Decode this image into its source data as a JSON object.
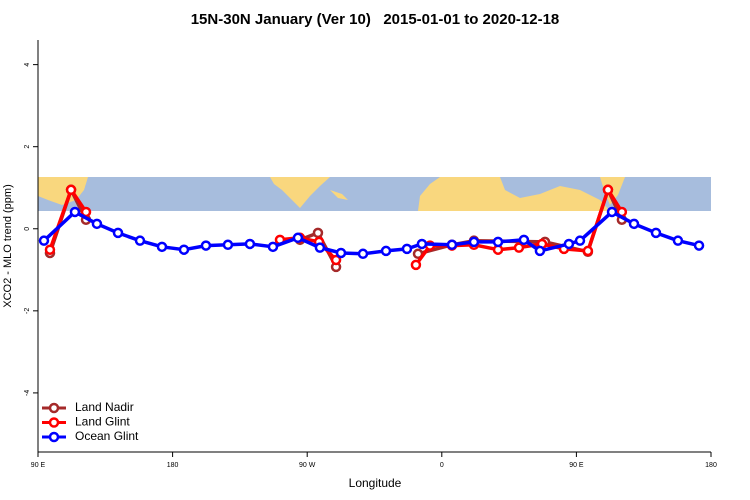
{
  "chart_data": {
    "type": "line",
    "title": "15N-30N January (Ver 10)   2015-01-01 to 2020-12-18",
    "x_label": "Longitude",
    "y_label": "XCO2 - MLO trend (ppm)",
    "xlim": [
      90,
      540
    ],
    "xticks": [
      {
        "value": 90,
        "label": "90 E"
      },
      180,
      {
        "value": 270,
        "label": "90 W"
      },
      {
        "value": 360,
        "label": "0"
      },
      {
        "value": 450,
        "label": "90 E"
      },
      {
        "value": 540,
        "label": "180"
      }
    ],
    "ylim": [
      -5.44,
      4.6
    ],
    "yticks": [
      -4,
      -2,
      0,
      2,
      4
    ],
    "legend": "bottom-left",
    "series": [
      {
        "name": "Land Nadir",
        "color": "#a52a2a",
        "x": [
          98.0,
          112.1,
          122.1,
          null,
          265.2,
          277.2,
          289.3,
          null,
          344.1,
          366.8,
          381.5,
          429.0,
          457.7,
          471.1,
          480.4
        ],
        "values": [
          -0.59,
          0.95,
          0.22,
          null,
          -0.27,
          -0.1,
          -0.93,
          null,
          -0.61,
          -0.39,
          -0.29,
          -0.32,
          -0.56,
          0.95,
          0.22
        ]
      },
      {
        "name": "Land Glint",
        "color": "#ff0000",
        "x": [
          98.0,
          112.1,
          122.1,
          null,
          251.8,
          265.2,
          277.9,
          289.3,
          null,
          342.7,
          352.1,
          366.8,
          381.5,
          397.6,
          411.6,
          427.0,
          441.7,
          457.7,
          471.1,
          480.4
        ],
        "values": [
          -0.51,
          0.95,
          0.41,
          null,
          -0.27,
          -0.22,
          -0.32,
          -0.76,
          null,
          -0.88,
          -0.41,
          -0.41,
          -0.39,
          -0.51,
          -0.46,
          -0.37,
          -0.49,
          -0.54,
          0.95,
          0.41
        ]
      },
      {
        "name": "Ocean Glint",
        "color": "#0000ff",
        "x": [
          94.0,
          114.7,
          129.4,
          143.5,
          158.2,
          172.9,
          187.6,
          202.3,
          217.0,
          231.7,
          247.1,
          263.8,
          278.5,
          292.6,
          307.3,
          322.7,
          336.7,
          346.7,
          366.8,
          381.5,
          397.6,
          414.9,
          425.6,
          445.0,
          452.4,
          473.8,
          488.5,
          503.2,
          517.9,
          532.0
        ],
        "values": [
          -0.29,
          0.41,
          0.12,
          -0.1,
          -0.29,
          -0.44,
          -0.51,
          -0.41,
          -0.39,
          -0.37,
          -0.44,
          -0.22,
          -0.46,
          -0.59,
          -0.61,
          -0.54,
          -0.49,
          -0.37,
          -0.39,
          -0.32,
          -0.32,
          -0.27,
          -0.54,
          -0.37,
          -0.29,
          0.41,
          0.12,
          -0.1,
          -0.29,
          -0.41
        ]
      }
    ]
  }
}
